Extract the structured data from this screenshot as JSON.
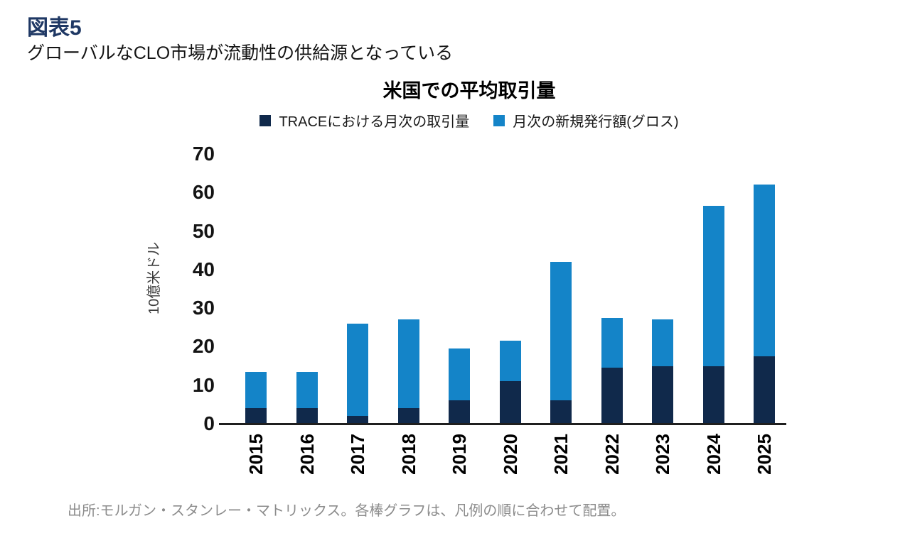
{
  "header": {
    "figure_label": "図表5",
    "subtitle": "グローバルなCLO市場が流動性の供給源となっている"
  },
  "chart": {
    "title": "米国での平均取引量",
    "ylabel": "10億米ドル",
    "source": "出所:モルガン・スタンレー・マトリックス。各棒グラフは、凡例の順に合わせて配置。"
  },
  "colors": {
    "figure_label": "#1f3864",
    "trace_navy": "#10294b",
    "issuance_blue": "#1484c8",
    "axis_line": "#1f1f1f",
    "source_gray": "#8c8c8c"
  },
  "chart_data": {
    "type": "bar",
    "stacked": true,
    "title": "米国での平均取引量",
    "xlabel": "",
    "ylabel": "10億米ドル",
    "categories": [
      "2015",
      "2016",
      "2017",
      "2018",
      "2019",
      "2020",
      "2021",
      "2022",
      "2023",
      "2024",
      "2025"
    ],
    "series": [
      {
        "name": "TRACEにおける月次の取引量",
        "color": "#10294b",
        "values": [
          4,
          4,
          2,
          4,
          6,
          11,
          6,
          14.5,
          15,
          15,
          17.5
        ]
      },
      {
        "name": "月次の新規発行額(グロス)",
        "color": "#1484c8",
        "values": [
          9.5,
          9.5,
          24,
          23,
          13.5,
          10.5,
          36,
          13,
          12,
          41.5,
          44.5
        ]
      }
    ],
    "stacked_totals": [
      13.5,
      13.5,
      26,
      27,
      19.5,
      21.5,
      42,
      27.5,
      27,
      56.5,
      62
    ],
    "ylim": [
      0,
      70
    ],
    "yticks": [
      0,
      10,
      20,
      30,
      40,
      50,
      60,
      70
    ],
    "legend_position": "top-center",
    "grid": false
  }
}
